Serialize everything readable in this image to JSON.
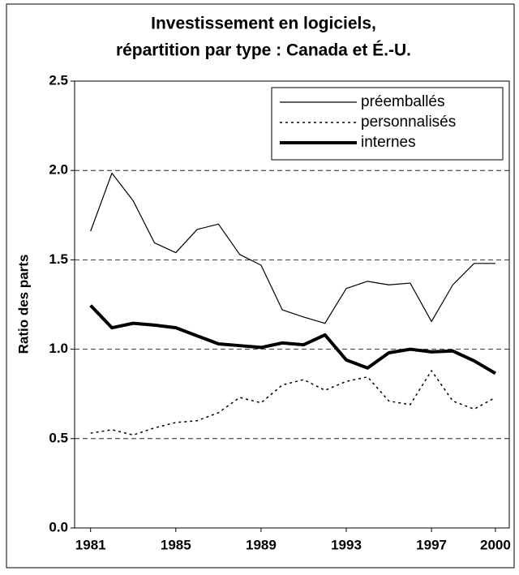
{
  "chart_data": {
    "type": "line",
    "title": [
      "Investissement en logiciels,",
      "répartition par type : Canada et É.-U."
    ],
    "y_label": "Ratio des parts",
    "x": [
      1981,
      1982,
      1983,
      1984,
      1985,
      1986,
      1987,
      1988,
      1989,
      1990,
      1991,
      1992,
      1993,
      1994,
      1995,
      1996,
      1997,
      1998,
      1999,
      2000
    ],
    "series": [
      {
        "name": "préemballés",
        "color": "#000000",
        "width": 1.2,
        "dash": "solid",
        "values": [
          1.66,
          1.985,
          1.83,
          1.595,
          1.54,
          1.67,
          1.7,
          1.53,
          1.47,
          1.22,
          1.18,
          1.145,
          1.34,
          1.38,
          1.36,
          1.37,
          1.155,
          1.36,
          1.48,
          1.48
        ]
      },
      {
        "name": "personnalisés",
        "color": "#000000",
        "width": 1.5,
        "dash": "dotted",
        "values": [
          0.53,
          0.55,
          0.52,
          0.56,
          0.59,
          0.6,
          0.645,
          0.73,
          0.7,
          0.8,
          0.83,
          0.77,
          0.82,
          0.845,
          0.71,
          0.69,
          0.88,
          0.71,
          0.665,
          0.73
        ]
      },
      {
        "name": "internes",
        "color": "#000000",
        "width": 4,
        "dash": "solid",
        "values": [
          1.245,
          1.12,
          1.145,
          1.135,
          1.12,
          1.075,
          1.03,
          1.02,
          1.01,
          1.035,
          1.025,
          1.08,
          0.94,
          0.895,
          0.98,
          1.0,
          0.985,
          0.99,
          0.935,
          0.865
        ]
      }
    ],
    "xlim": [
      1980.25,
      2000.65
    ],
    "xticks": [
      1981,
      1985,
      1989,
      1993,
      1997,
      2000
    ],
    "ylim": [
      0,
      2.5
    ],
    "yticks": [
      {
        "value": 0,
        "label": "0.0"
      },
      {
        "value": 0.5,
        "label": "0.5"
      },
      {
        "value": 1,
        "label": "1.0"
      },
      {
        "value": 1.5,
        "label": "1.5"
      },
      {
        "value": 2,
        "label": "2.0"
      },
      {
        "value": 2.5,
        "label": "2.5"
      }
    ],
    "grid": true,
    "legend": "top-right"
  }
}
